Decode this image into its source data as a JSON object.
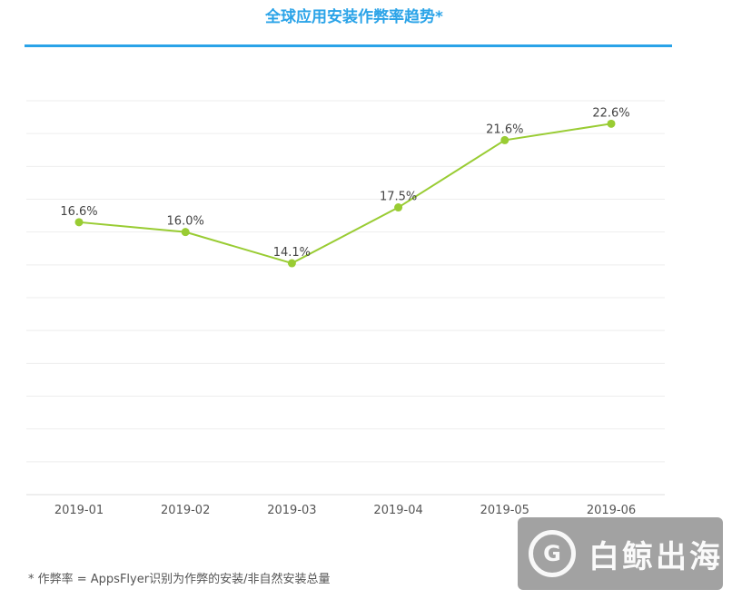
{
  "header": {
    "title": "全球应用安装作弊率趋势*"
  },
  "footnote": "* 作弊率 = AppsFlyer识别为作弊的安装/非自然安装总量",
  "watermark": {
    "logo_letter": "G",
    "text": "白鲸出海"
  },
  "colors": {
    "title": "#2aa3e8",
    "line": "#99cc33",
    "grid": "#eeeeee",
    "label": "#444444"
  },
  "chart_data": {
    "type": "line",
    "title": "全球应用安装作弊率趋势*",
    "categories": [
      "2019-01",
      "2019-02",
      "2019-03",
      "2019-04",
      "2019-05",
      "2019-06"
    ],
    "series": [
      {
        "values": [
          16.6,
          16.0,
          14.1,
          17.5,
          21.6,
          22.6
        ]
      }
    ],
    "data_labels": [
      "16.6%",
      "16.0%",
      "14.1%",
      "17.5%",
      "21.6%",
      "22.6%"
    ],
    "ylim": [
      0,
      24
    ],
    "y_step": 2,
    "grid": true,
    "legend": "none"
  }
}
